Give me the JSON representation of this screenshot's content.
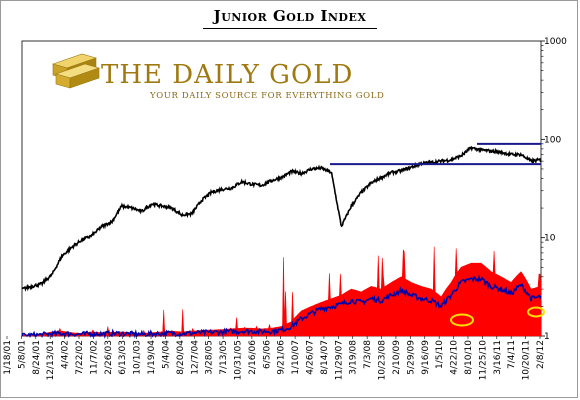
{
  "chart_data": {
    "type": "line",
    "title": "Junior Gold Index",
    "y_scale": "log",
    "ylim": [
      1,
      1000
    ],
    "y_ticks": [
      1,
      10,
      100,
      1000
    ],
    "y_tick_labels": [
      "1",
      "10",
      "100",
      "1000"
    ],
    "x_tick_labels": [
      "1/18/01",
      "5/8/01",
      "8/24/01",
      "12/13/01",
      "4/4/02",
      "7/22/02",
      "11/7/02",
      "2/26/03",
      "6/13/03",
      "10/1/03",
      "1/19/04",
      "5/4/04",
      "8/20/04",
      "12/7/04",
      "3/28/05",
      "7/13/05",
      "10/31/05",
      "2/16/06",
      "6/5/06",
      "9/21/06",
      "1/10/07",
      "4/26/07",
      "8/14/07",
      "11/29/07",
      "3/19/08",
      "7/3/08",
      "10/23/08",
      "2/10/09",
      "5/29/09",
      "9/16/09",
      "1/5/10",
      "4/22/10",
      "8/10/10",
      "11/25/10",
      "3/16/11",
      "7/4/11",
      "10/20/11",
      "2/8/12"
    ],
    "series": [
      {
        "type": "line",
        "color": "#000000",
        "values": [
          3.0,
          3.2,
          3.4,
          4.2,
          6.5,
          8.0,
          9.5,
          10.5,
          13,
          14.5,
          21,
          20,
          18.5,
          22,
          21,
          20,
          17,
          17.5,
          24,
          29,
          31,
          32,
          37,
          35,
          34,
          38,
          41,
          47,
          45,
          50,
          51,
          46,
          13,
          21,
          29,
          36,
          41,
          46,
          48,
          52,
          57,
          58,
          60,
          62,
          68,
          82,
          78,
          76,
          74,
          70,
          70,
          60,
          62
        ]
      },
      {
        "type": "area",
        "color": "#ff0000",
        "values": [
          1.02,
          1.03,
          1.05,
          1.1,
          1.12,
          1.08,
          1.06,
          1.1,
          1.08,
          1.09,
          1.1,
          1.08,
          1.06,
          1.08,
          1.1,
          1.12,
          1.1,
          1.12,
          1.14,
          1.15,
          1.16,
          1.18,
          1.2,
          1.2,
          1.18,
          1.2,
          1.25,
          1.4,
          1.8,
          2.0,
          2.2,
          2.4,
          2.6,
          3.0,
          2.8,
          3.2,
          3.0,
          3.5,
          4.0,
          3.5,
          3.2,
          3.0,
          2.5,
          3.5,
          5.0,
          5.5,
          5.5,
          4.5,
          4.0,
          3.5,
          4.5,
          3.0,
          3.2
        ]
      },
      {
        "type": "line",
        "color": "#0000aa",
        "values": [
          1.01,
          1.02,
          1.03,
          1.05,
          1.06,
          1.05,
          1.04,
          1.06,
          1.05,
          1.06,
          1.06,
          1.05,
          1.04,
          1.05,
          1.06,
          1.07,
          1.06,
          1.07,
          1.08,
          1.09,
          1.1,
          1.11,
          1.12,
          1.12,
          1.11,
          1.12,
          1.15,
          1.25,
          1.5,
          1.7,
          1.9,
          2.0,
          2.1,
          2.3,
          2.2,
          2.4,
          2.3,
          2.6,
          2.9,
          2.6,
          2.4,
          2.3,
          2.0,
          2.6,
          3.5,
          3.8,
          3.8,
          3.2,
          3.0,
          2.7,
          3.3,
          2.4,
          2.5
        ]
      }
    ],
    "resistance_lines": [
      90,
      56
    ],
    "highlight_markers": 2
  },
  "brand": {
    "name": "THE DAILY GOLD",
    "tagline": "YOUR DAILY SOURCE FOR EVERYTHING GOLD",
    "logo": "gold-bars-icon",
    "gold_color": "#c9a227"
  },
  "colors": {
    "resistance": "#1a1a8c",
    "marker": "#ffdd00"
  }
}
